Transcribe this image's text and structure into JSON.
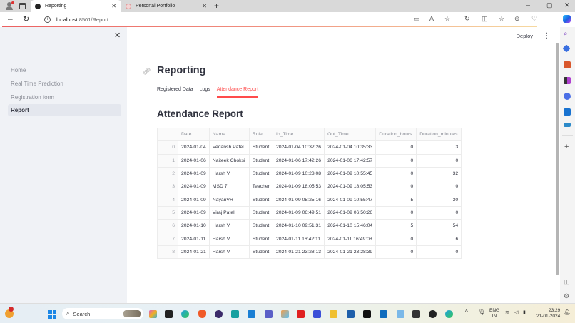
{
  "browser": {
    "tabs": [
      {
        "title": "Reporting",
        "active": true
      },
      {
        "title": "Personal Portfolio",
        "active": false
      }
    ],
    "url_host": "localhost",
    "url_rest": ":8501/Report",
    "window_controls": {
      "minimize": "–",
      "maximize": "▢",
      "close": "✕"
    }
  },
  "app": {
    "sidebar": {
      "items": [
        {
          "label": "Home",
          "active": false
        },
        {
          "label": "Real Time Prediction",
          "active": false
        },
        {
          "label": "Registration form",
          "active": false
        },
        {
          "label": "Report",
          "active": true
        }
      ]
    },
    "header": {
      "deploy_label": "Deploy"
    },
    "page_title": "Reporting",
    "tabs": [
      {
        "label": "Registered Data",
        "active": false
      },
      {
        "label": "Logs",
        "active": false
      },
      {
        "label": "Attendance Report",
        "active": true
      }
    ],
    "section_title": "Attendance Report",
    "table": {
      "columns": [
        "",
        "Date",
        "Name",
        "Role",
        "In_Time",
        "Out_Time",
        "Duration_hours",
        "Duration_minutes"
      ],
      "rows": [
        [
          "0",
          "2024-01-04",
          "Vedansh Patel",
          "Student",
          "2024-01-04 10:32:26",
          "2024-01-04 10:35:33",
          "0",
          "3"
        ],
        [
          "1",
          "2024-01-06",
          "Naiteek Choksi",
          "Student",
          "2024-01-06 17:42:26",
          "2024-01-06 17:42:57",
          "0",
          "0"
        ],
        [
          "2",
          "2024-01-09",
          "Harsh V.",
          "Student",
          "2024-01-09 10:23:08",
          "2024-01-09 10:55:45",
          "0",
          "32"
        ],
        [
          "3",
          "2024-01-09",
          "MSD 7",
          "Teacher",
          "2024-01-09 18:05:53",
          "2024-01-09 18:05:53",
          "0",
          "0"
        ],
        [
          "4",
          "2024-01-09",
          "NayanVR",
          "Student",
          "2024-01-09 05:25:16",
          "2024-01-09 10:55:47",
          "5",
          "30"
        ],
        [
          "5",
          "2024-01-09",
          "Viraj Patel",
          "Student",
          "2024-01-09 06:49:51",
          "2024-01-09 06:50:26",
          "0",
          "0"
        ],
        [
          "6",
          "2024-01-10",
          "Harsh V.",
          "Student",
          "2024-01-10 09:51:31",
          "2024-01-10 15:46:04",
          "5",
          "54"
        ],
        [
          "7",
          "2024-01-11",
          "Harsh V.",
          "Student",
          "2024-01-11 16:42:11",
          "2024-01-11 16:49:08",
          "0",
          "6"
        ],
        [
          "8",
          "2024-01-21",
          "Harsh V.",
          "Student",
          "2024-01-21 23:28:13",
          "2024-01-21 23:28:39",
          "0",
          "0"
        ]
      ]
    },
    "colors": {
      "accent": "#ff4b4b",
      "text": "#31333f",
      "sidebar_bg": "#f0f2f6"
    }
  },
  "taskbar": {
    "search_placeholder": "Search",
    "notification_count": "1",
    "language": "ENG",
    "region": "IN",
    "time": "23:29",
    "date": "21-01-2024"
  }
}
